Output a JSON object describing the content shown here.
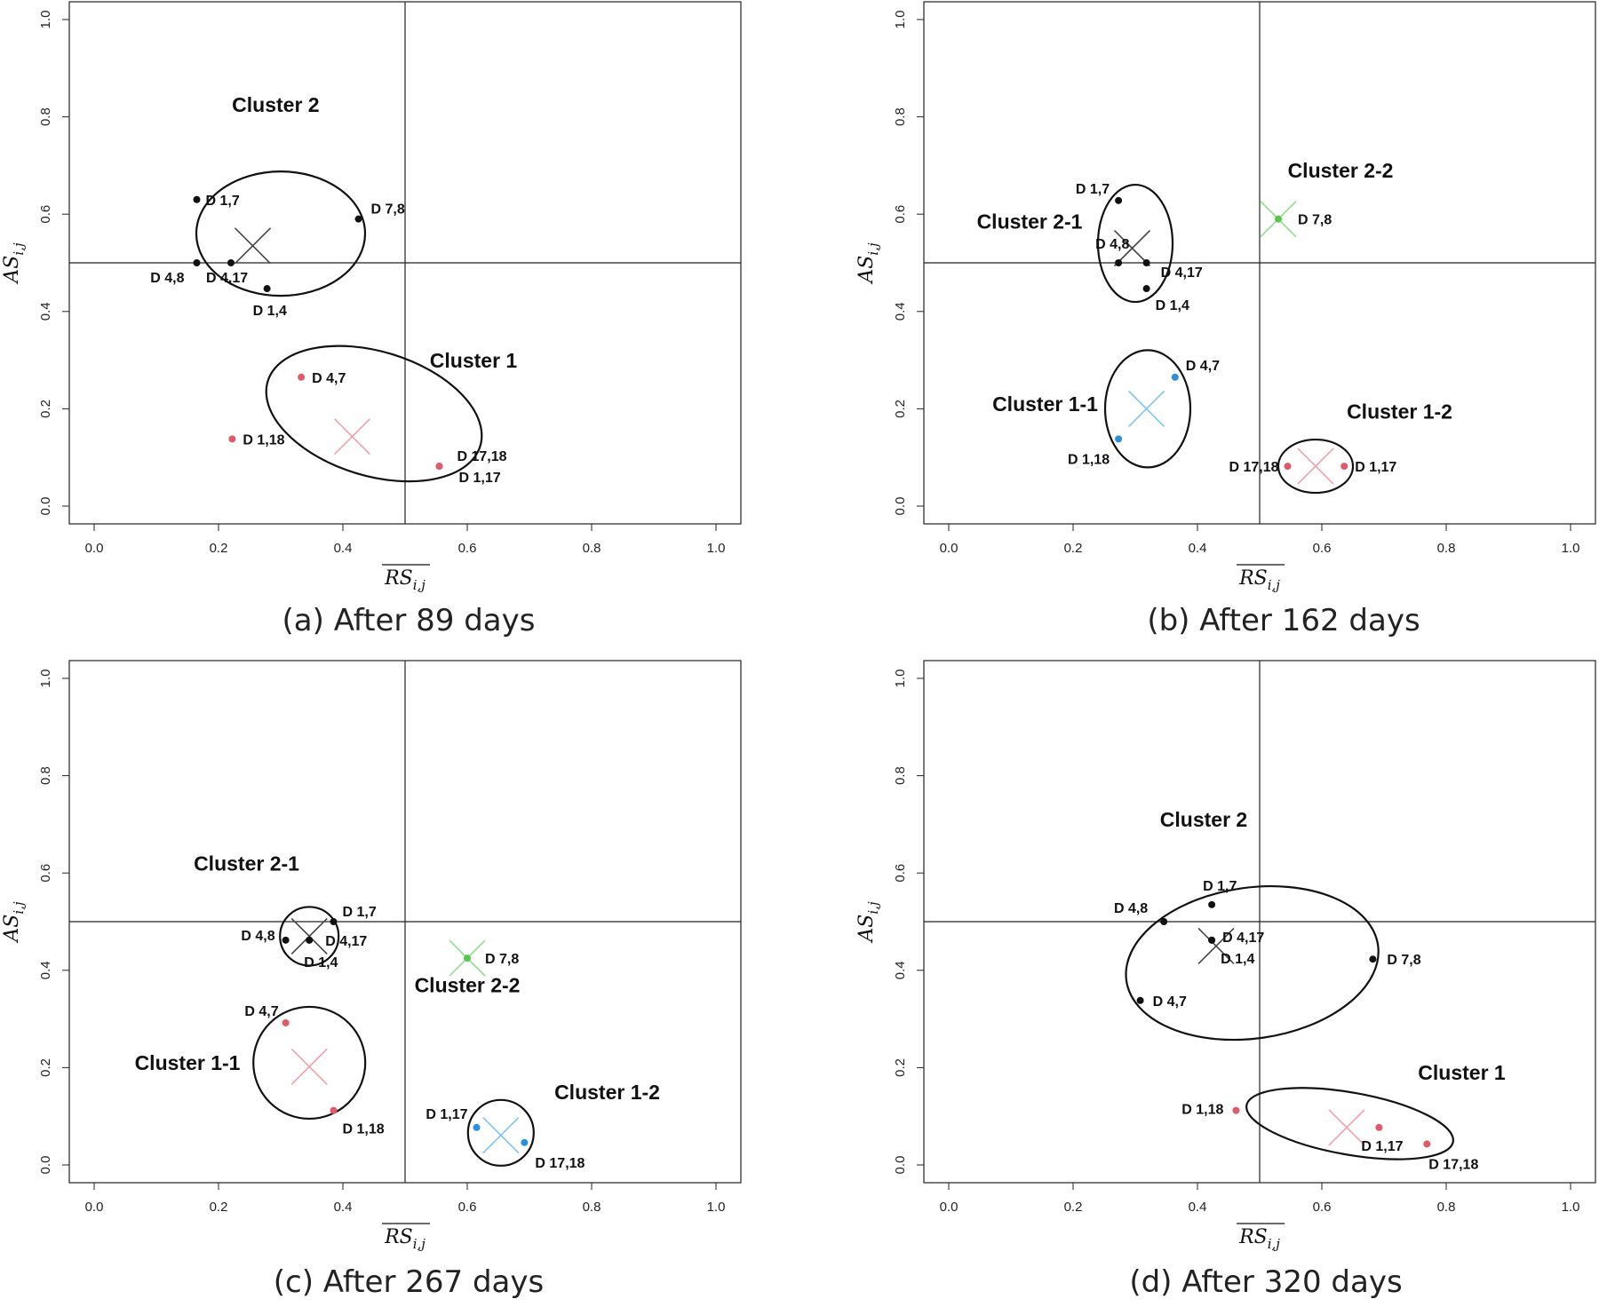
{
  "colors": {
    "black": "#111111",
    "red": "#e05a6a",
    "blue": "#2b8fe0",
    "green": "#55c84b",
    "red_cross": "#f2a0ac",
    "blue_cross": "#7cc4f2",
    "green_cross": "#8ce08a",
    "black_cross": "#444444"
  },
  "chart_data": [
    {
      "type": "scatter",
      "caption": "(a) After 89 days",
      "xlabel": "RS",
      "xlabel_sub": "i,j",
      "ylabel": "AS",
      "ylabel_sub": "i,j",
      "xlim": [
        0,
        1
      ],
      "ylim": [
        0,
        1
      ],
      "xticks": [
        "0.0",
        "0.2",
        "0.4",
        "0.6",
        "0.8",
        "1.0"
      ],
      "yticks": [
        "0.0",
        "0.2",
        "0.4",
        "0.6",
        "0.8",
        "1.0"
      ],
      "refline_x": 0.5,
      "refline_y": 0.5,
      "points": [
        {
          "label": "D 1,7",
          "x": 0.165,
          "y": 0.63,
          "color": "black"
        },
        {
          "label": "D 7,8",
          "x": 0.425,
          "y": 0.59,
          "color": "black"
        },
        {
          "label": "D 4,8",
          "x": 0.165,
          "y": 0.5,
          "color": "black"
        },
        {
          "label": "D 4,17",
          "x": 0.22,
          "y": 0.5,
          "color": "black"
        },
        {
          "label": "D 1,4",
          "x": 0.278,
          "y": 0.447,
          "color": "black"
        },
        {
          "label": "D 4,7",
          "x": 0.333,
          "y": 0.265,
          "color": "red"
        },
        {
          "label": "D 1,18",
          "x": 0.222,
          "y": 0.138,
          "color": "red"
        },
        {
          "label": "D 17,18",
          "x": 0.555,
          "y": 0.082,
          "color": "red"
        },
        {
          "label": "D 1,17",
          "x": 0.555,
          "y": 0.082,
          "color": "red"
        }
      ],
      "clusters": [
        {
          "label": "Cluster 2",
          "center": [
            0.255,
            0.535
          ],
          "color": "black"
        },
        {
          "label": "Cluster 1",
          "center": [
            0.415,
            0.143
          ],
          "color": "red"
        }
      ]
    },
    {
      "type": "scatter",
      "caption": "(b) After 162 days",
      "xlabel": "RS",
      "xlabel_sub": "i,j",
      "ylabel": "AS",
      "ylabel_sub": "i,j",
      "xlim": [
        0,
        1
      ],
      "ylim": [
        0,
        1
      ],
      "xticks": [
        "0.0",
        "0.2",
        "0.4",
        "0.6",
        "0.8",
        "1.0"
      ],
      "yticks": [
        "0.0",
        "0.2",
        "0.4",
        "0.6",
        "0.8",
        "1.0"
      ],
      "refline_x": 0.5,
      "refline_y": 0.5,
      "points": [
        {
          "label": "D 1,7",
          "x": 0.273,
          "y": 0.628,
          "color": "black"
        },
        {
          "label": "D 4,8",
          "x": 0.273,
          "y": 0.5,
          "color": "black"
        },
        {
          "label": "D 4,17",
          "x": 0.318,
          "y": 0.5,
          "color": "black"
        },
        {
          "label": "D 1,4",
          "x": 0.318,
          "y": 0.447,
          "color": "black"
        },
        {
          "label": "D 7,8",
          "x": 0.53,
          "y": 0.59,
          "color": "green"
        },
        {
          "label": "D 4,7",
          "x": 0.364,
          "y": 0.265,
          "color": "blue"
        },
        {
          "label": "D 1,18",
          "x": 0.273,
          "y": 0.138,
          "color": "blue"
        },
        {
          "label": "D 17,18",
          "x": 0.545,
          "y": 0.082,
          "color": "red"
        },
        {
          "label": "D 1,17",
          "x": 0.636,
          "y": 0.082,
          "color": "red"
        }
      ],
      "clusters": [
        {
          "label": "Cluster 2-1",
          "center": [
            0.295,
            0.53
          ],
          "color": "black"
        },
        {
          "label": "Cluster 2-2",
          "center": [
            0.53,
            0.59
          ],
          "color": "green"
        },
        {
          "label": "Cluster 1-1",
          "center": [
            0.318,
            0.2
          ],
          "color": "blue"
        },
        {
          "label": "Cluster 1-2",
          "center": [
            0.59,
            0.082
          ],
          "color": "red"
        }
      ]
    },
    {
      "type": "scatter",
      "caption": "(c) After 267 days",
      "xlabel": "RS",
      "xlabel_sub": "i,j",
      "ylabel": "AS",
      "ylabel_sub": "i,j",
      "xlim": [
        0,
        1
      ],
      "ylim": [
        0,
        1
      ],
      "xticks": [
        "0.0",
        "0.2",
        "0.4",
        "0.6",
        "0.8",
        "1.0"
      ],
      "yticks": [
        "0.0",
        "0.2",
        "0.4",
        "0.6",
        "0.8",
        "1.0"
      ],
      "refline_x": 0.5,
      "refline_y": 0.5,
      "points": [
        {
          "label": "D 1,7",
          "x": 0.385,
          "y": 0.5,
          "color": "black"
        },
        {
          "label": "D 4,8",
          "x": 0.308,
          "y": 0.462,
          "color": "black"
        },
        {
          "label": "D 4,17",
          "x": 0.346,
          "y": 0.462,
          "color": "black"
        },
        {
          "label": "D 1,4",
          "x": 0.346,
          "y": 0.462,
          "color": "black"
        },
        {
          "label": "D 7,8",
          "x": 0.6,
          "y": 0.425,
          "color": "green"
        },
        {
          "label": "D 4,7",
          "x": 0.308,
          "y": 0.292,
          "color": "red"
        },
        {
          "label": "D 1,18",
          "x": 0.385,
          "y": 0.112,
          "color": "red"
        },
        {
          "label": "D 1,17",
          "x": 0.615,
          "y": 0.077,
          "color": "blue"
        },
        {
          "label": "D 17,18",
          "x": 0.692,
          "y": 0.046,
          "color": "blue"
        }
      ],
      "clusters": [
        {
          "label": "Cluster 2-1",
          "center": [
            0.346,
            0.47
          ],
          "color": "black"
        },
        {
          "label": "Cluster 2-2",
          "center": [
            0.6,
            0.425
          ],
          "color": "green"
        },
        {
          "label": "Cluster 1-1",
          "center": [
            0.346,
            0.202
          ],
          "color": "red"
        },
        {
          "label": "Cluster 1-2",
          "center": [
            0.654,
            0.061
          ],
          "color": "blue"
        }
      ]
    },
    {
      "type": "scatter",
      "caption": "(d) After 320 days",
      "xlabel": "RS",
      "xlabel_sub": "i,j",
      "ylabel": "AS",
      "ylabel_sub": "i,j",
      "xlim": [
        0,
        1
      ],
      "ylim": [
        0,
        1
      ],
      "xticks": [
        "0.0",
        "0.2",
        "0.4",
        "0.6",
        "0.8",
        "1.0"
      ],
      "yticks": [
        "0.0",
        "0.2",
        "0.4",
        "0.6",
        "0.8",
        "1.0"
      ],
      "refline_x": 0.5,
      "refline_y": 0.5,
      "points": [
        {
          "label": "D 1,7",
          "x": 0.423,
          "y": 0.535,
          "color": "black"
        },
        {
          "label": "D 4,8",
          "x": 0.346,
          "y": 0.5,
          "color": "black"
        },
        {
          "label": "D 4,17",
          "x": 0.423,
          "y": 0.462,
          "color": "black"
        },
        {
          "label": "D 1,4",
          "x": 0.423,
          "y": 0.462,
          "color": "black"
        },
        {
          "label": "D 7,8",
          "x": 0.682,
          "y": 0.423,
          "color": "black"
        },
        {
          "label": "D 4,7",
          "x": 0.308,
          "y": 0.338,
          "color": "black"
        },
        {
          "label": "D 1,18",
          "x": 0.462,
          "y": 0.112,
          "color": "red"
        },
        {
          "label": "D 1,17",
          "x": 0.692,
          "y": 0.077,
          "color": "red"
        },
        {
          "label": "D 17,18",
          "x": 0.769,
          "y": 0.043,
          "color": "red"
        }
      ],
      "clusters": [
        {
          "label": "Cluster 2",
          "center": [
            0.43,
            0.45
          ],
          "color": "black"
        },
        {
          "label": "Cluster 1",
          "center": [
            0.64,
            0.077
          ],
          "color": "red"
        }
      ]
    }
  ]
}
